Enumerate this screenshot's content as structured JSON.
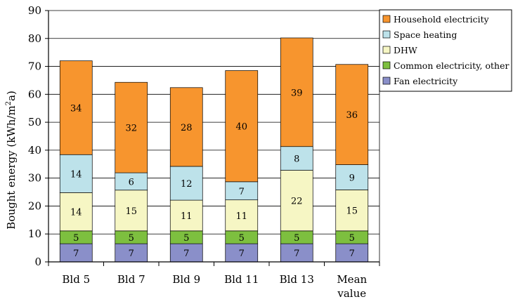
{
  "chart_data": {
    "type": "bar",
    "stacked": true,
    "categories": [
      [
        "Bld 5"
      ],
      [
        "Bld 7"
      ],
      [
        "Bld 9"
      ],
      [
        "Bld 11"
      ],
      [
        "Bld 13"
      ],
      [
        "Mean",
        "value"
      ]
    ],
    "series": [
      {
        "name": "Fan electricity",
        "color": "#8a8fc9",
        "values": [
          6.5,
          6.5,
          6.5,
          6.5,
          6.5,
          6.5
        ],
        "labels": [
          "7",
          "7",
          "7",
          "7",
          "7",
          "7"
        ]
      },
      {
        "name": "Common electricity, other",
        "color": "#7dbf3f",
        "values": [
          4.6,
          4.6,
          4.6,
          4.6,
          4.6,
          4.6
        ],
        "labels": [
          "5",
          "5",
          "5",
          "5",
          "5",
          "5"
        ]
      },
      {
        "name": "DHW",
        "color": "#f6f6c4",
        "values": [
          13.7,
          14.6,
          11.0,
          11.1,
          21.7,
          14.7
        ],
        "labels": [
          "14",
          "15",
          "11",
          "11",
          "22",
          "15"
        ]
      },
      {
        "name": "Space heating",
        "color": "#bde2ea",
        "values": [
          13.6,
          6.2,
          12.1,
          6.5,
          8.5,
          9.0
        ],
        "labels": [
          "14",
          "6",
          "12",
          "7",
          "8",
          "9"
        ]
      },
      {
        "name": "Household electricity",
        "color": "#f7952e",
        "values": [
          33.6,
          32.4,
          28.2,
          39.8,
          38.9,
          35.9
        ],
        "labels": [
          "34",
          "32",
          "28",
          "40",
          "39",
          "36"
        ]
      }
    ],
    "ylabel_main": "Bought energy (kWh/m",
    "ylabel_sup": "2",
    "ylabel_end": "a)",
    "ylim": [
      0,
      90
    ],
    "yticks": [
      0,
      10,
      20,
      30,
      40,
      50,
      60,
      70,
      80,
      90
    ],
    "grid": true,
    "legend_position": "top-right",
    "legend_order": [
      "Household electricity",
      "Space heating",
      "DHW",
      "Common electricity, other",
      "Fan electricity"
    ]
  }
}
